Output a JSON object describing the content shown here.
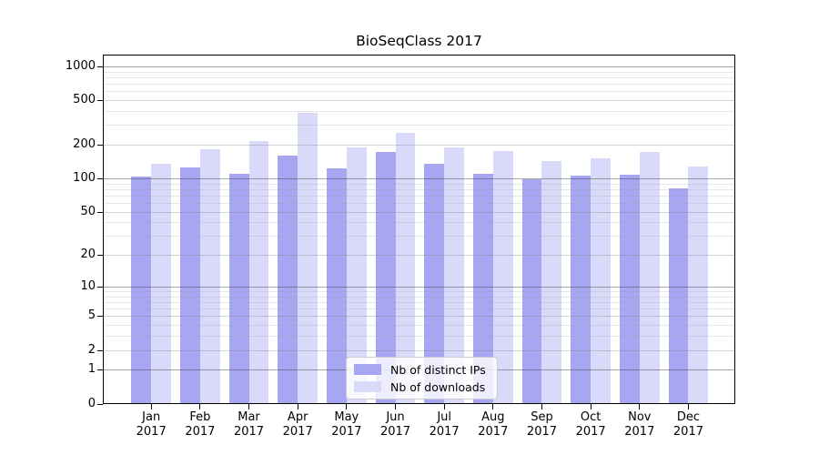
{
  "chart_data": {
    "type": "bar",
    "title": "BioSeqClass 2017",
    "categories": [
      "Jan",
      "Feb",
      "Mar",
      "Apr",
      "May",
      "Jun",
      "Jul",
      "Aug",
      "Sep",
      "Oct",
      "Nov",
      "Dec"
    ],
    "x_tick_year": "2017",
    "series": [
      {
        "name": "Nb of distinct IPs",
        "color": "#a6a6f2",
        "values": [
          103,
          126,
          110,
          160,
          123,
          171,
          135,
          110,
          99,
          106,
          108,
          81
        ]
      },
      {
        "name": "Nb of downloads",
        "color": "#d9d9fa",
        "values": [
          134,
          181,
          215,
          385,
          188,
          255,
          190,
          176,
          144,
          151,
          171,
          128
        ]
      }
    ],
    "y_scale": "log1p",
    "y_ticks": [
      0,
      1,
      2,
      5,
      10,
      20,
      50,
      100,
      200,
      500,
      1000
    ],
    "y_major_gridlines": [
      1,
      10,
      100,
      1000
    ],
    "y_minor_gridlines": [
      3,
      4,
      6,
      7,
      8,
      9,
      30,
      40,
      60,
      70,
      80,
      90,
      300,
      400,
      600,
      700,
      800,
      900
    ],
    "ylim": [
      0,
      1270
    ],
    "xlabel": "",
    "ylabel": "",
    "grid": true,
    "legend_position": "lower center"
  }
}
